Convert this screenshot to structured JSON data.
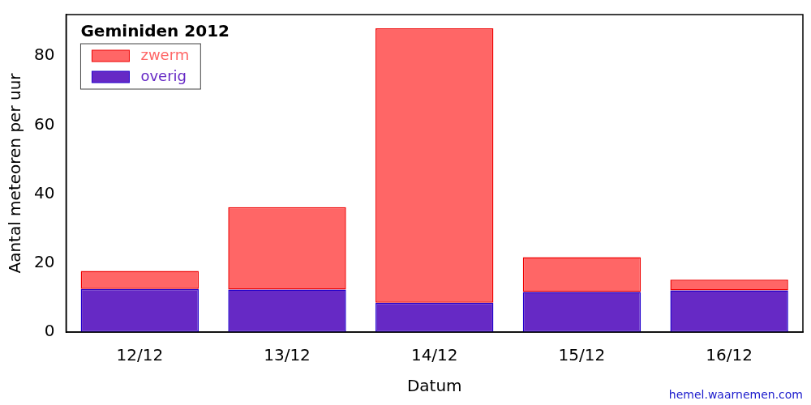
{
  "chart_data": {
    "type": "bar",
    "title": "Geminiden 2012",
    "x_label": "Datum",
    "y_label": "Aantal meteoren per uur",
    "source": "hemel.waarnemen.com",
    "categories": [
      "12/12",
      "13/12",
      "14/12",
      "15/12",
      "16/12"
    ],
    "series": [
      {
        "name": "overig",
        "color": "#6629c5",
        "values": [
          12.5,
          12.3,
          8.5,
          11.6,
          12.1
        ]
      },
      {
        "name": "zwerm",
        "color": "#ff6666",
        "values": [
          5.2,
          23.9,
          79.5,
          10.1,
          3.1
        ]
      }
    ],
    "stacked": true,
    "ylim": [
      0,
      92
    ],
    "yticks": [
      0,
      20,
      40,
      60,
      80
    ],
    "grid": false,
    "legend": "upper left"
  }
}
